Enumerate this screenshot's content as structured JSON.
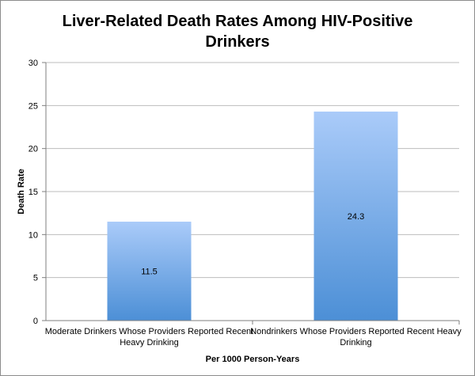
{
  "chart_data": {
    "type": "bar",
    "title_lines": [
      "Liver-Related Death Rates Among HIV-Positive",
      "Drinkers"
    ],
    "categories": [
      [
        "Moderate Drinkers Whose Providers Reported Recent",
        "Heavy Drinking"
      ],
      [
        "Nondrinkers Whose Providers Reported Recent Heavy",
        "Drinking"
      ]
    ],
    "values": [
      11.5,
      24.3
    ],
    "data_labels": [
      "11.5",
      "24.3"
    ],
    "xlabel": "Per 1000 Person-Years",
    "ylabel": "Death Rate",
    "ylim": [
      0,
      30
    ],
    "yticks": [
      0,
      5,
      10,
      15,
      20,
      25,
      30
    ],
    "grid": true,
    "legend": "none",
    "colors": {
      "bar_top": "#aacbf9",
      "bar_bottom": "#4c8fd6",
      "grid": "#bdbdbd",
      "axis": "#7f7f7f"
    }
  }
}
